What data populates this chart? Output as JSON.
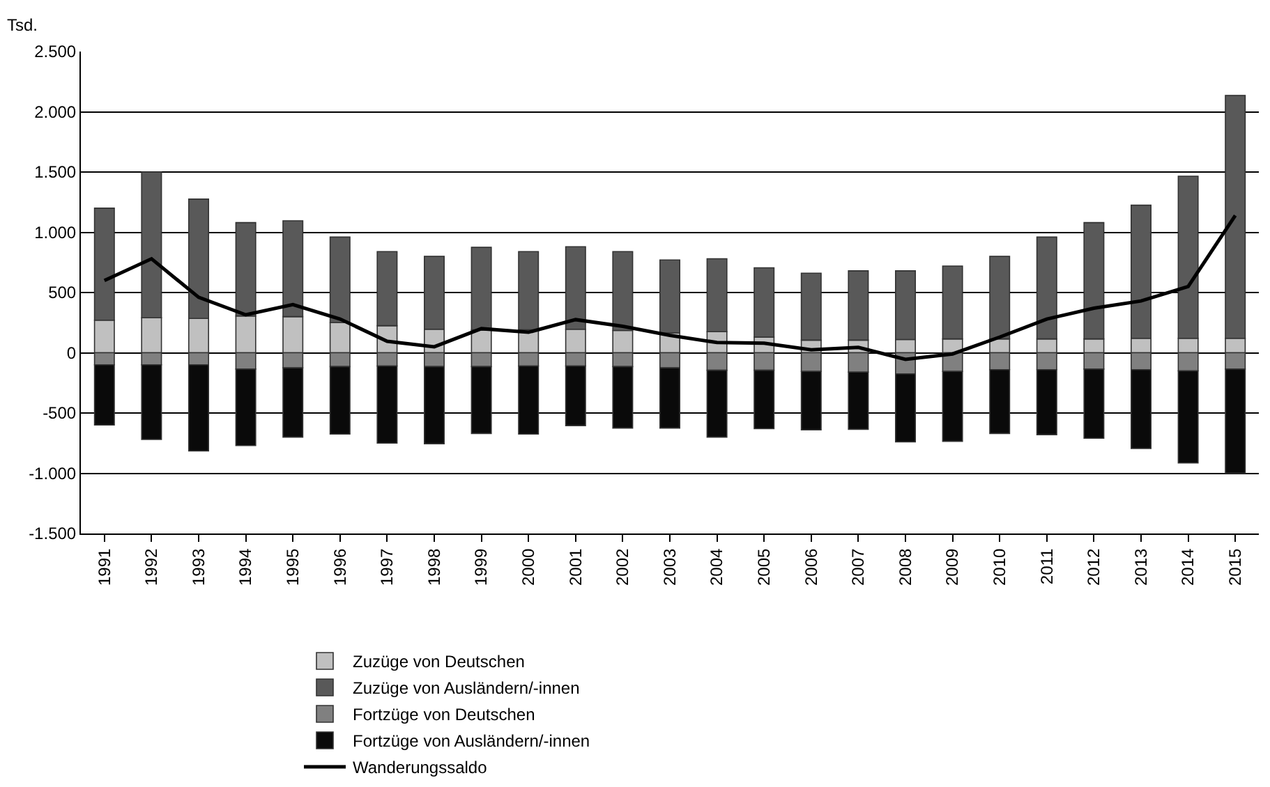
{
  "chart_data": {
    "type": "bar",
    "stacked": true,
    "ylabel": "Tsd.",
    "categories": [
      "1991",
      "1992",
      "1993",
      "1994",
      "1995",
      "1996",
      "1997",
      "1998",
      "1999",
      "2000",
      "2001",
      "2002",
      "2003",
      "2004",
      "2005",
      "2006",
      "2007",
      "2008",
      "2009",
      "2010",
      "2011",
      "2012",
      "2013",
      "2014",
      "2015"
    ],
    "series": [
      {
        "name": "Zuzüge von Deutschen",
        "color": "#c0c0c0",
        "values": [
          270,
          290,
          285,
          305,
          300,
          250,
          225,
          195,
          190,
          190,
          195,
          185,
          165,
          175,
          130,
          105,
          105,
          110,
          115,
          115,
          115,
          115,
          120,
          120,
          120
        ]
      },
      {
        "name": "Zuzüge von Ausländern/-innen",
        "color": "#595959",
        "values": [
          930,
          1210,
          990,
          775,
          795,
          710,
          615,
          605,
          685,
          650,
          685,
          655,
          605,
          605,
          575,
          555,
          575,
          570,
          605,
          685,
          845,
          965,
          1105,
          1345,
          2015
        ]
      },
      {
        "name": "Fortzüge von Deutschen",
        "color": "#808080",
        "values": [
          -100,
          -100,
          -100,
          -135,
          -125,
          -115,
          -110,
          -115,
          -115,
          -110,
          -110,
          -115,
          -125,
          -145,
          -145,
          -155,
          -160,
          -175,
          -155,
          -140,
          -140,
          -135,
          -140,
          -150,
          -135
        ]
      },
      {
        "name": "Fortzüge von Ausländern/-innen",
        "color": "#0a0a0a",
        "values": [
          -500,
          -620,
          -715,
          -635,
          -575,
          -560,
          -640,
          -640,
          -555,
          -565,
          -495,
          -510,
          -500,
          -555,
          -485,
          -485,
          -475,
          -565,
          -580,
          -530,
          -540,
          -575,
          -655,
          -765,
          -865
        ]
      },
      {
        "name": "Wanderungssaldo",
        "type": "line",
        "color": "#000000",
        "values": [
          600,
          780,
          460,
          315,
          400,
          280,
          95,
          50,
          200,
          170,
          275,
          220,
          145,
          85,
          80,
          25,
          45,
          -55,
          -10,
          130,
          280,
          370,
          430,
          550,
          1140
        ]
      }
    ],
    "ylim": [
      -1500,
      2500
    ],
    "yticks": [
      {
        "value": -1500,
        "label": "-1.500"
      },
      {
        "value": -1000,
        "label": "-1.000"
      },
      {
        "value": -500,
        "label": "-500"
      },
      0,
      500,
      {
        "value": 1000,
        "label": "1.000"
      },
      {
        "value": 1500,
        "label": "1.500"
      },
      {
        "value": 2000,
        "label": "2.000"
      },
      {
        "value": 2500,
        "label": "2.500"
      }
    ],
    "grid": "y",
    "legend": "bottom",
    "marker": "none",
    "line_style": "solid"
  }
}
